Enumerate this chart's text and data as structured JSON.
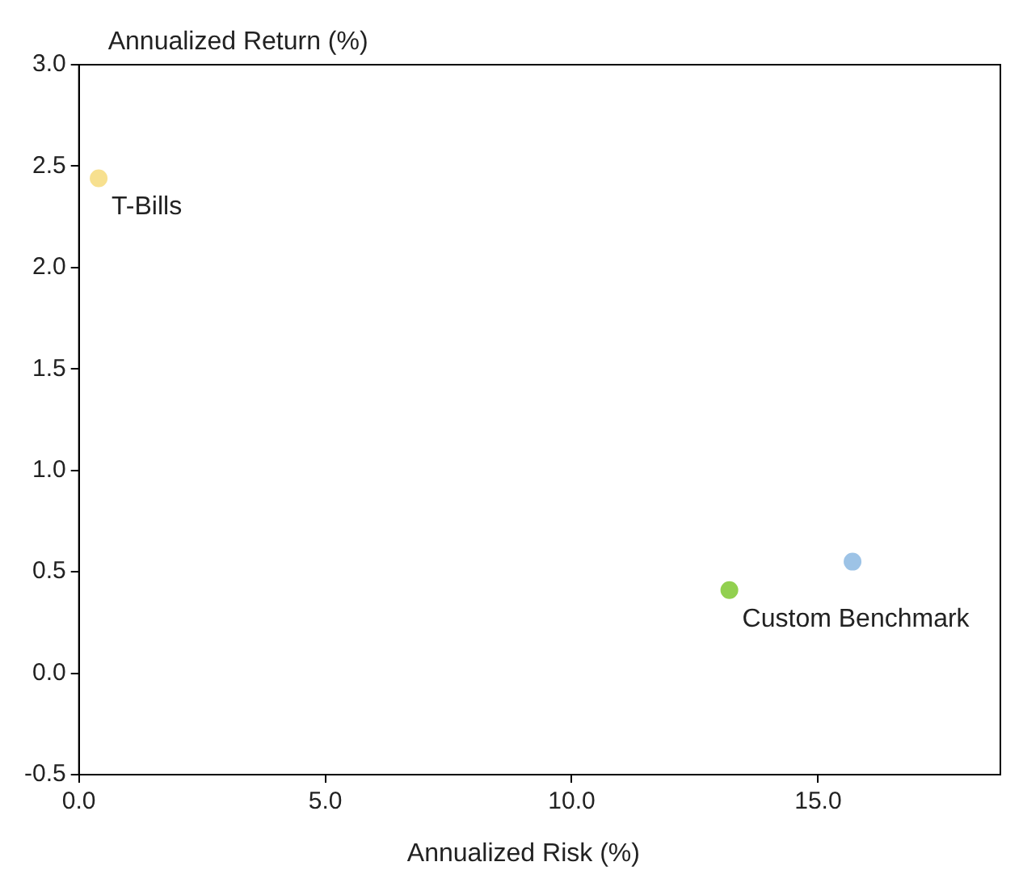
{
  "chart_data": {
    "type": "scatter",
    "xlabel": "Annualized Risk (%)",
    "ylabel": "Annualized Return (%)",
    "series": [
      {
        "name": "T-Bills",
        "color": "#f7e08f",
        "x": [
          0.4
        ],
        "values": [
          2.44
        ]
      },
      {
        "color": "#9dc3e6",
        "x": [
          15.7
        ],
        "values": [
          0.55
        ]
      },
      {
        "name": "Custom Benchmark",
        "color": "#92d050",
        "x": [
          13.2
        ],
        "values": [
          0.41
        ]
      }
    ],
    "xlim": [
      0,
      18.7
    ],
    "ylim": [
      -0.5,
      3.0
    ],
    "xticks": [
      {
        "value": 0,
        "label": "0.0"
      },
      {
        "value": 5,
        "label": "5.0"
      },
      {
        "value": 10,
        "label": "10.0"
      },
      {
        "value": 15,
        "label": "15.0"
      }
    ],
    "yticks": [
      {
        "value": -0.5,
        "label": "-0.5"
      },
      {
        "value": 0,
        "label": "0.0"
      },
      {
        "value": 0.5,
        "label": "0.5"
      },
      {
        "value": 1,
        "label": "1.0"
      },
      {
        "value": 1.5,
        "label": "1.5"
      },
      {
        "value": 2,
        "label": "2.0"
      },
      {
        "value": 2.5,
        "label": "2.5"
      },
      {
        "value": 3,
        "label": "3.0"
      }
    ],
    "grid": false,
    "legend": false,
    "marker": "circle"
  }
}
